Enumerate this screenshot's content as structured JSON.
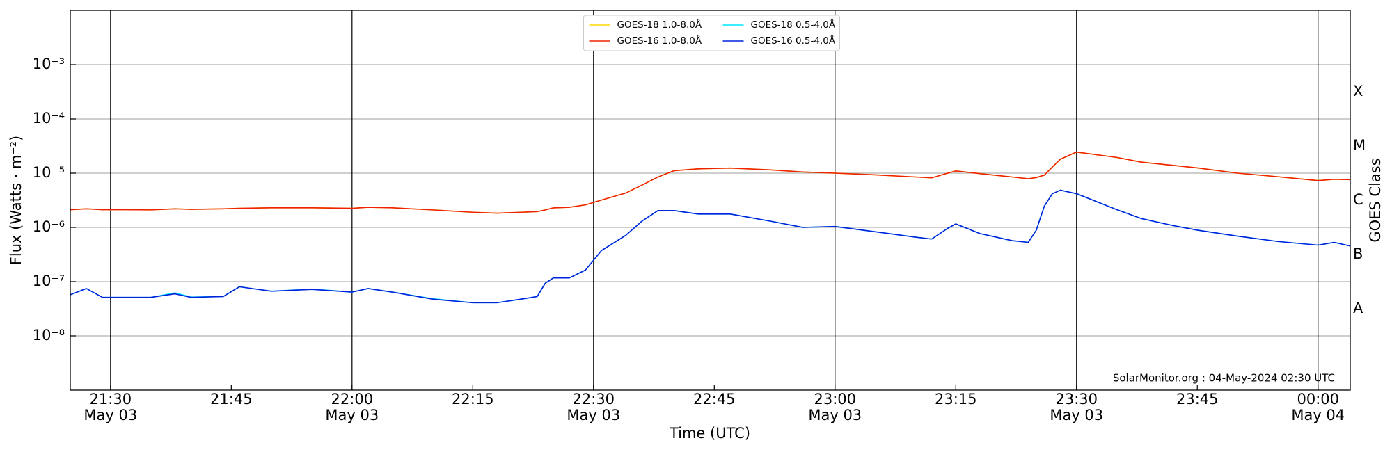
{
  "chart_data": {
    "type": "line",
    "xlabel": "Time (UTC)",
    "ylabel": "Flux (Watts · m⁻²)",
    "y2label": "GOES Class",
    "annotation": "SolarMonitor.org : 04-May-2024 02:30 UTC",
    "log_y": true,
    "grid": true,
    "legend": "upper center",
    "x": [
      "May 03 21:25",
      "May 03 21:27",
      "May 03 21:29",
      "May 03 21:32",
      "May 03 21:35",
      "May 03 21:38",
      "May 03 21:40",
      "May 03 21:44",
      "May 03 21:46",
      "May 03 21:50",
      "May 03 21:55",
      "May 03 22:00",
      "May 03 22:02",
      "May 03 22:05",
      "May 03 22:10",
      "May 03 22:15",
      "May 03 22:18",
      "May 03 22:21",
      "May 03 22:23",
      "May 03 22:24",
      "May 03 22:25",
      "May 03 22:27",
      "May 03 22:29",
      "May 03 22:31",
      "May 03 22:34",
      "May 03 22:36",
      "May 03 22:38",
      "May 03 22:40",
      "May 03 22:43",
      "May 03 22:47",
      "May 03 22:52",
      "May 03 22:56",
      "May 03 23:00",
      "May 03 23:05",
      "May 03 23:10",
      "May 03 23:12",
      "May 03 23:14",
      "May 03 23:15",
      "May 03 23:18",
      "May 03 23:22",
      "May 03 23:24",
      "May 03 23:25",
      "May 03 23:26",
      "May 03 23:27",
      "May 03 23:28",
      "May 03 23:30",
      "May 03 23:35",
      "May 03 23:38",
      "May 03 23:42",
      "May 03 23:45",
      "May 03 23:50",
      "May 03 23:55",
      "May 04 00:00",
      "May 04 00:02",
      "May 04 00:04"
    ],
    "xlim": [
      "May 03 21:25",
      "May 04 00:04"
    ],
    "xticks": [
      {
        "value": "May 03 21:30",
        "label": [
          "21:30",
          "May 03"
        ]
      },
      {
        "value": "May 03 21:45",
        "label": [
          "21:45"
        ]
      },
      {
        "value": "May 03 22:00",
        "label": [
          "22:00",
          "May 03"
        ]
      },
      {
        "value": "May 03 22:15",
        "label": [
          "22:15"
        ]
      },
      {
        "value": "May 03 22:30",
        "label": [
          "22:30",
          "May 03"
        ]
      },
      {
        "value": "May 03 22:45",
        "label": [
          "22:45"
        ]
      },
      {
        "value": "May 03 23:00",
        "label": [
          "23:00",
          "May 03"
        ]
      },
      {
        "value": "May 03 23:15",
        "label": [
          "23:15"
        ]
      },
      {
        "value": "May 03 23:30",
        "label": [
          "23:30",
          "May 03"
        ]
      },
      {
        "value": "May 03 23:45",
        "label": [
          "23:45"
        ]
      },
      {
        "value": "May 04 00:00",
        "label": [
          "00:00",
          "May 04"
        ]
      }
    ],
    "ylim": [
      1e-09,
      0.01
    ],
    "yticks": [
      {
        "value": 1e-08,
        "label": "10⁻⁸"
      },
      {
        "value": 1e-07,
        "label": "10⁻⁷"
      },
      {
        "value": 1e-06,
        "label": "10⁻⁶"
      },
      {
        "value": 1e-05,
        "label": "10⁻⁵"
      },
      {
        "value": 0.0001,
        "label": "10⁻⁴"
      },
      {
        "value": 0.001,
        "label": "10⁻³"
      }
    ],
    "y2lim": [
      1e-09,
      0.01
    ],
    "y2ticks": [
      {
        "value": 3.162e-08,
        "label": "A"
      },
      {
        "value": 3.162e-07,
        "label": "B"
      },
      {
        "value": 3.162e-06,
        "label": "C"
      },
      {
        "value": 3.162e-05,
        "label": "M"
      },
      {
        "value": 0.0003162,
        "label": "X"
      }
    ],
    "series": [
      {
        "name": "GOES-18 1.0-8.0Å",
        "color": "#ffd700",
        "values": [
          2.12e-06,
          2.2e-06,
          2.12e-06,
          2.12e-06,
          2.1e-06,
          2.2e-06,
          2.15e-06,
          2.2e-06,
          2.25e-06,
          2.3e-06,
          2.3e-06,
          2.25e-06,
          2.35e-06,
          2.3e-06,
          2.1e-06,
          1.9e-06,
          1.83e-06,
          1.9e-06,
          1.95e-06,
          2.1e-06,
          2.29e-06,
          2.35e-06,
          2.6e-06,
          3.2e-06,
          4.3e-06,
          6e-06,
          8.5e-06,
          1.11e-05,
          1.2e-05,
          1.24e-05,
          1.15e-05,
          1.05e-05,
          1e-05,
          9.3e-06,
          8.5e-06,
          8.2e-06,
          1e-05,
          1.1e-05,
          9.8e-06,
          8.5e-06,
          7.9e-06,
          8.3e-06,
          9.2e-06,
          1.3e-05,
          1.81e-05,
          2.45e-05,
          1.95e-05,
          1.6e-05,
          1.39e-05,
          1.25e-05,
          1e-05,
          8.6e-06,
          7.3e-06,
          7.7e-06,
          7.6e-06
        ]
      },
      {
        "name": "GOES-16 1.0-8.0Å",
        "color": "#ee2200",
        "values": [
          2.12e-06,
          2.2e-06,
          2.12e-06,
          2.12e-06,
          2.1e-06,
          2.2e-06,
          2.15e-06,
          2.2e-06,
          2.25e-06,
          2.3e-06,
          2.3e-06,
          2.25e-06,
          2.35e-06,
          2.3e-06,
          2.1e-06,
          1.9e-06,
          1.83e-06,
          1.9e-06,
          1.95e-06,
          2.1e-06,
          2.29e-06,
          2.35e-06,
          2.6e-06,
          3.2e-06,
          4.3e-06,
          6e-06,
          8.5e-06,
          1.11e-05,
          1.2e-05,
          1.24e-05,
          1.15e-05,
          1.05e-05,
          1e-05,
          9.3e-06,
          8.5e-06,
          8.2e-06,
          1e-05,
          1.1e-05,
          9.8e-06,
          8.5e-06,
          7.9e-06,
          8.3e-06,
          9.2e-06,
          1.3e-05,
          1.81e-05,
          2.45e-05,
          1.95e-05,
          1.6e-05,
          1.39e-05,
          1.25e-05,
          1e-05,
          8.6e-06,
          7.3e-06,
          7.7e-06,
          7.6e-06
        ]
      },
      {
        "name": "GOES-18 0.5-4.0Å",
        "color": "#00e5ff",
        "values": [
          5.73e-08,
          7.46e-08,
          5.12e-08,
          5.12e-08,
          5.12e-08,
          6.2e-08,
          5.2e-08,
          5.31e-08,
          8.04e-08,
          6.66e-08,
          7.3e-08,
          6.41e-08,
          7.46e-08,
          6.41e-08,
          4.85e-08,
          4.08e-08,
          4.08e-08,
          4.75e-08,
          5.31e-08,
          9.35e-08,
          1.17e-07,
          1.17e-07,
          1.64e-07,
          3.76e-07,
          7.13e-07,
          1.3e-06,
          2.04e-06,
          2.04e-06,
          1.76e-06,
          1.76e-06,
          1.3e-06,
          1e-06,
          1.04e-06,
          8.3e-07,
          6.6e-07,
          6.1e-07,
          9.6e-07,
          1.16e-06,
          7.7e-07,
          5.7e-07,
          5.3e-07,
          8.9e-07,
          2.47e-06,
          4.18e-06,
          4.86e-06,
          4.18e-06,
          2.12e-06,
          1.46e-06,
          1.08e-06,
          8.9e-07,
          6.9e-07,
          5.5e-07,
          4.71e-07,
          5.3e-07,
          4.54e-07
        ]
      },
      {
        "name": "GOES-16 0.5-4.0Å",
        "color": "#0022dd",
        "values": [
          5.73e-08,
          7.46e-08,
          5.12e-08,
          5.12e-08,
          5.12e-08,
          5.95e-08,
          5.12e-08,
          5.31e-08,
          8.04e-08,
          6.66e-08,
          7.18e-08,
          6.41e-08,
          7.46e-08,
          6.41e-08,
          4.75e-08,
          4.08e-08,
          4.08e-08,
          4.75e-08,
          5.31e-08,
          9.35e-08,
          1.17e-07,
          1.17e-07,
          1.64e-07,
          3.76e-07,
          7.13e-07,
          1.3e-06,
          2.04e-06,
          2.04e-06,
          1.76e-06,
          1.76e-06,
          1.3e-06,
          1e-06,
          1.04e-06,
          8.3e-07,
          6.6e-07,
          6.1e-07,
          9.6e-07,
          1.16e-06,
          7.7e-07,
          5.7e-07,
          5.3e-07,
          8.9e-07,
          2.47e-06,
          4.18e-06,
          4.86e-06,
          4.18e-06,
          2.12e-06,
          1.46e-06,
          1.08e-06,
          8.9e-07,
          6.9e-07,
          5.5e-07,
          4.71e-07,
          5.3e-07,
          4.54e-07
        ]
      }
    ]
  }
}
